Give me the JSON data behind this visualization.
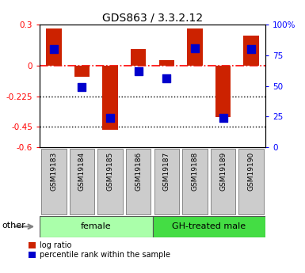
{
  "title": "GDS863 / 3.3.2.12",
  "samples": [
    "GSM19183",
    "GSM19184",
    "GSM19185",
    "GSM19186",
    "GSM19187",
    "GSM19188",
    "GSM19189",
    "GSM19190"
  ],
  "log_ratio": [
    0.27,
    -0.08,
    -0.47,
    0.12,
    0.04,
    0.27,
    -0.38,
    0.22
  ],
  "percentile_rank": [
    80,
    49,
    24,
    62,
    56,
    81,
    24,
    80
  ],
  "groups": [
    {
      "label": "female",
      "indices": [
        0,
        1,
        2,
        3
      ],
      "color": "#AAFFAA"
    },
    {
      "label": "GH-treated male",
      "indices": [
        4,
        5,
        6,
        7
      ],
      "color": "#44DD44"
    }
  ],
  "ylim_left": [
    -0.6,
    0.3
  ],
  "ylim_right": [
    0,
    100
  ],
  "yticks_left": [
    0.3,
    0.0,
    -0.225,
    -0.45,
    -0.6
  ],
  "ytick_labels_left": [
    "0.3",
    "0",
    "-0.225",
    "-0.45",
    "-0.6"
  ],
  "yticks_right": [
    100,
    75,
    50,
    25,
    0
  ],
  "ytick_labels_right": [
    "100%",
    "75",
    "50",
    "25",
    "0"
  ],
  "hlines": [
    {
      "y": 0.0,
      "style": "-.",
      "color": "red",
      "lw": 1.2
    },
    {
      "y": -0.225,
      "style": ":",
      "color": "black",
      "lw": 1.0
    },
    {
      "y": -0.45,
      "style": ":",
      "color": "black",
      "lw": 1.0
    }
  ],
  "bar_color": "#CC2200",
  "dot_color": "#0000CC",
  "bar_width": 0.55,
  "dot_size": 45,
  "legend_items": [
    {
      "label": "log ratio",
      "color": "#CC2200"
    },
    {
      "label": "percentile rank within the sample",
      "color": "#0000CC"
    }
  ],
  "other_label": "other",
  "group_colors": [
    "#AAFFAA",
    "#44DD44"
  ],
  "sample_box_color": "#CCCCCC",
  "sample_box_edge": "#888888"
}
